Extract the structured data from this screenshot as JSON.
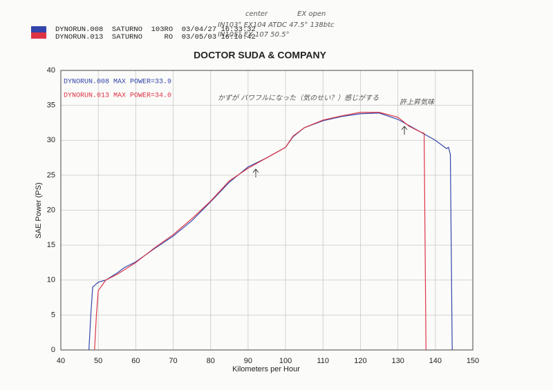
{
  "header": {
    "runs": [
      "DYNORUN.008  SATURNO  103RO  03/04/27 16:33:32",
      "DYNORUN.013  SATURNO     RO  03/05/03 16:10:42"
    ]
  },
  "notes": [
    "center",
    "EX open",
    "IN103° EX104 ATDC 47.5° 138btc",
    "IN105° EX 107 50.5°",
    "かずが パワフルになった（気のせい？）感じがする",
    "許上昇気味"
  ],
  "chart_data": {
    "type": "line",
    "title": "DOCTOR SUDA & COMPANY",
    "x_label": "Kilometers per Hour",
    "y_label": "SAE Power (PS)",
    "legend_labels": [
      "DYNORUN.008  MAX POWER=33.9",
      "DYNORUN.013  MAX POWER=34.0"
    ],
    "xlim": [
      40,
      150
    ],
    "xticks": [
      40,
      50,
      60,
      70,
      80,
      90,
      100,
      110,
      120,
      130,
      140,
      150
    ],
    "ylim": [
      0,
      40
    ],
    "yticks": [
      0,
      5,
      10,
      15,
      20,
      25,
      30,
      35,
      40
    ],
    "grid": true,
    "series": [
      {
        "name": "DYNORUN.008",
        "color": "#3344aa",
        "x": [
          47.5,
          48,
          48.5,
          50,
          52,
          55,
          57,
          60,
          65,
          70,
          75,
          80,
          85,
          90,
          95,
          100,
          102,
          105,
          110,
          115,
          120,
          125,
          130,
          135,
          140,
          143,
          143.5,
          144,
          144.5
        ],
        "values": [
          0,
          5,
          9,
          9.7,
          10,
          11,
          11.8,
          12.6,
          14.5,
          16.3,
          18.5,
          21.2,
          24,
          26.2,
          27.5,
          29,
          30.5,
          31.8,
          32.8,
          33.4,
          33.8,
          33.9,
          33,
          31.5,
          30,
          28.8,
          29,
          28,
          0
        ]
      },
      {
        "name": "DYNORUN.013",
        "color": "#dd3344",
        "x": [
          49,
          49.5,
          50,
          52,
          55,
          60,
          65,
          70,
          75,
          80,
          85,
          90,
          95,
          100,
          102,
          105,
          110,
          115,
          120,
          125,
          130,
          133,
          136,
          137,
          137.5
        ],
        "values": [
          0,
          5,
          8.5,
          10,
          10.8,
          12.5,
          14.6,
          16.5,
          18.8,
          21.3,
          24.2,
          26,
          27.5,
          29,
          30.6,
          31.8,
          32.9,
          33.5,
          34,
          34,
          33.3,
          32,
          31.2,
          31,
          0
        ]
      }
    ]
  }
}
